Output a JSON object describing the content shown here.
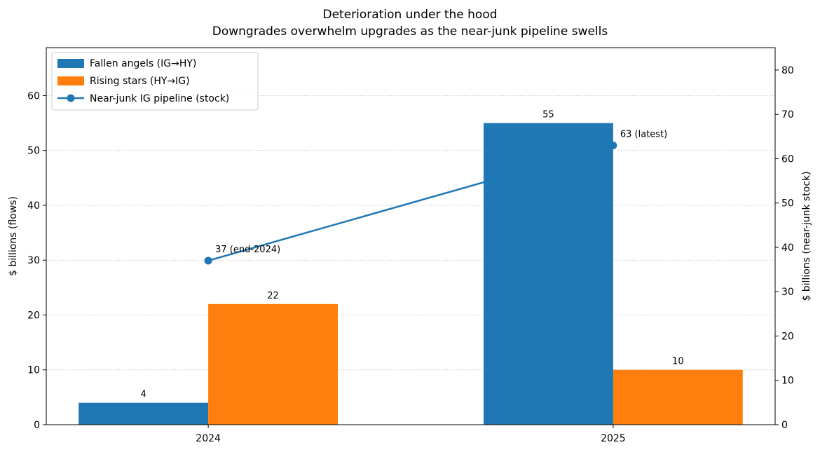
{
  "chart_data": {
    "type": "bar",
    "title": "Deterioration under the hood",
    "subtitle": "Downgrades overwhelm upgrades as the near-junk pipeline swells",
    "categories": [
      "2024",
      "2025"
    ],
    "ylabel": "$ billions (flows)",
    "ylabel_right": "$ billions (near-junk stock)",
    "ylim": [
      0,
      68.75
    ],
    "ylim_right": [
      0,
      85.05
    ],
    "yticks": [
      0,
      10,
      20,
      30,
      40,
      50,
      60
    ],
    "yticks_right": [
      0,
      10,
      20,
      30,
      40,
      50,
      60,
      70,
      80
    ],
    "grid": "horizontal dotted",
    "legend_placement": "top-left",
    "series": [
      {
        "name": "Fallen angels (IG→HY)",
        "type": "bar",
        "axis": "left",
        "values": [
          4,
          55
        ],
        "labels": [
          "4",
          "55"
        ],
        "color": "#1f77b4"
      },
      {
        "name": "Rising stars (HY→IG)",
        "type": "bar",
        "axis": "left",
        "values": [
          22,
          10
        ],
        "labels": [
          "22",
          "10"
        ],
        "color": "#ff7f0e"
      },
      {
        "name": "Near-junk IG pipeline (stock)",
        "type": "line",
        "axis": "right",
        "values": [
          37,
          63
        ],
        "labels": [
          "37 (end-2024)",
          "63 (latest)"
        ],
        "color": "#1f77b4"
      }
    ]
  }
}
